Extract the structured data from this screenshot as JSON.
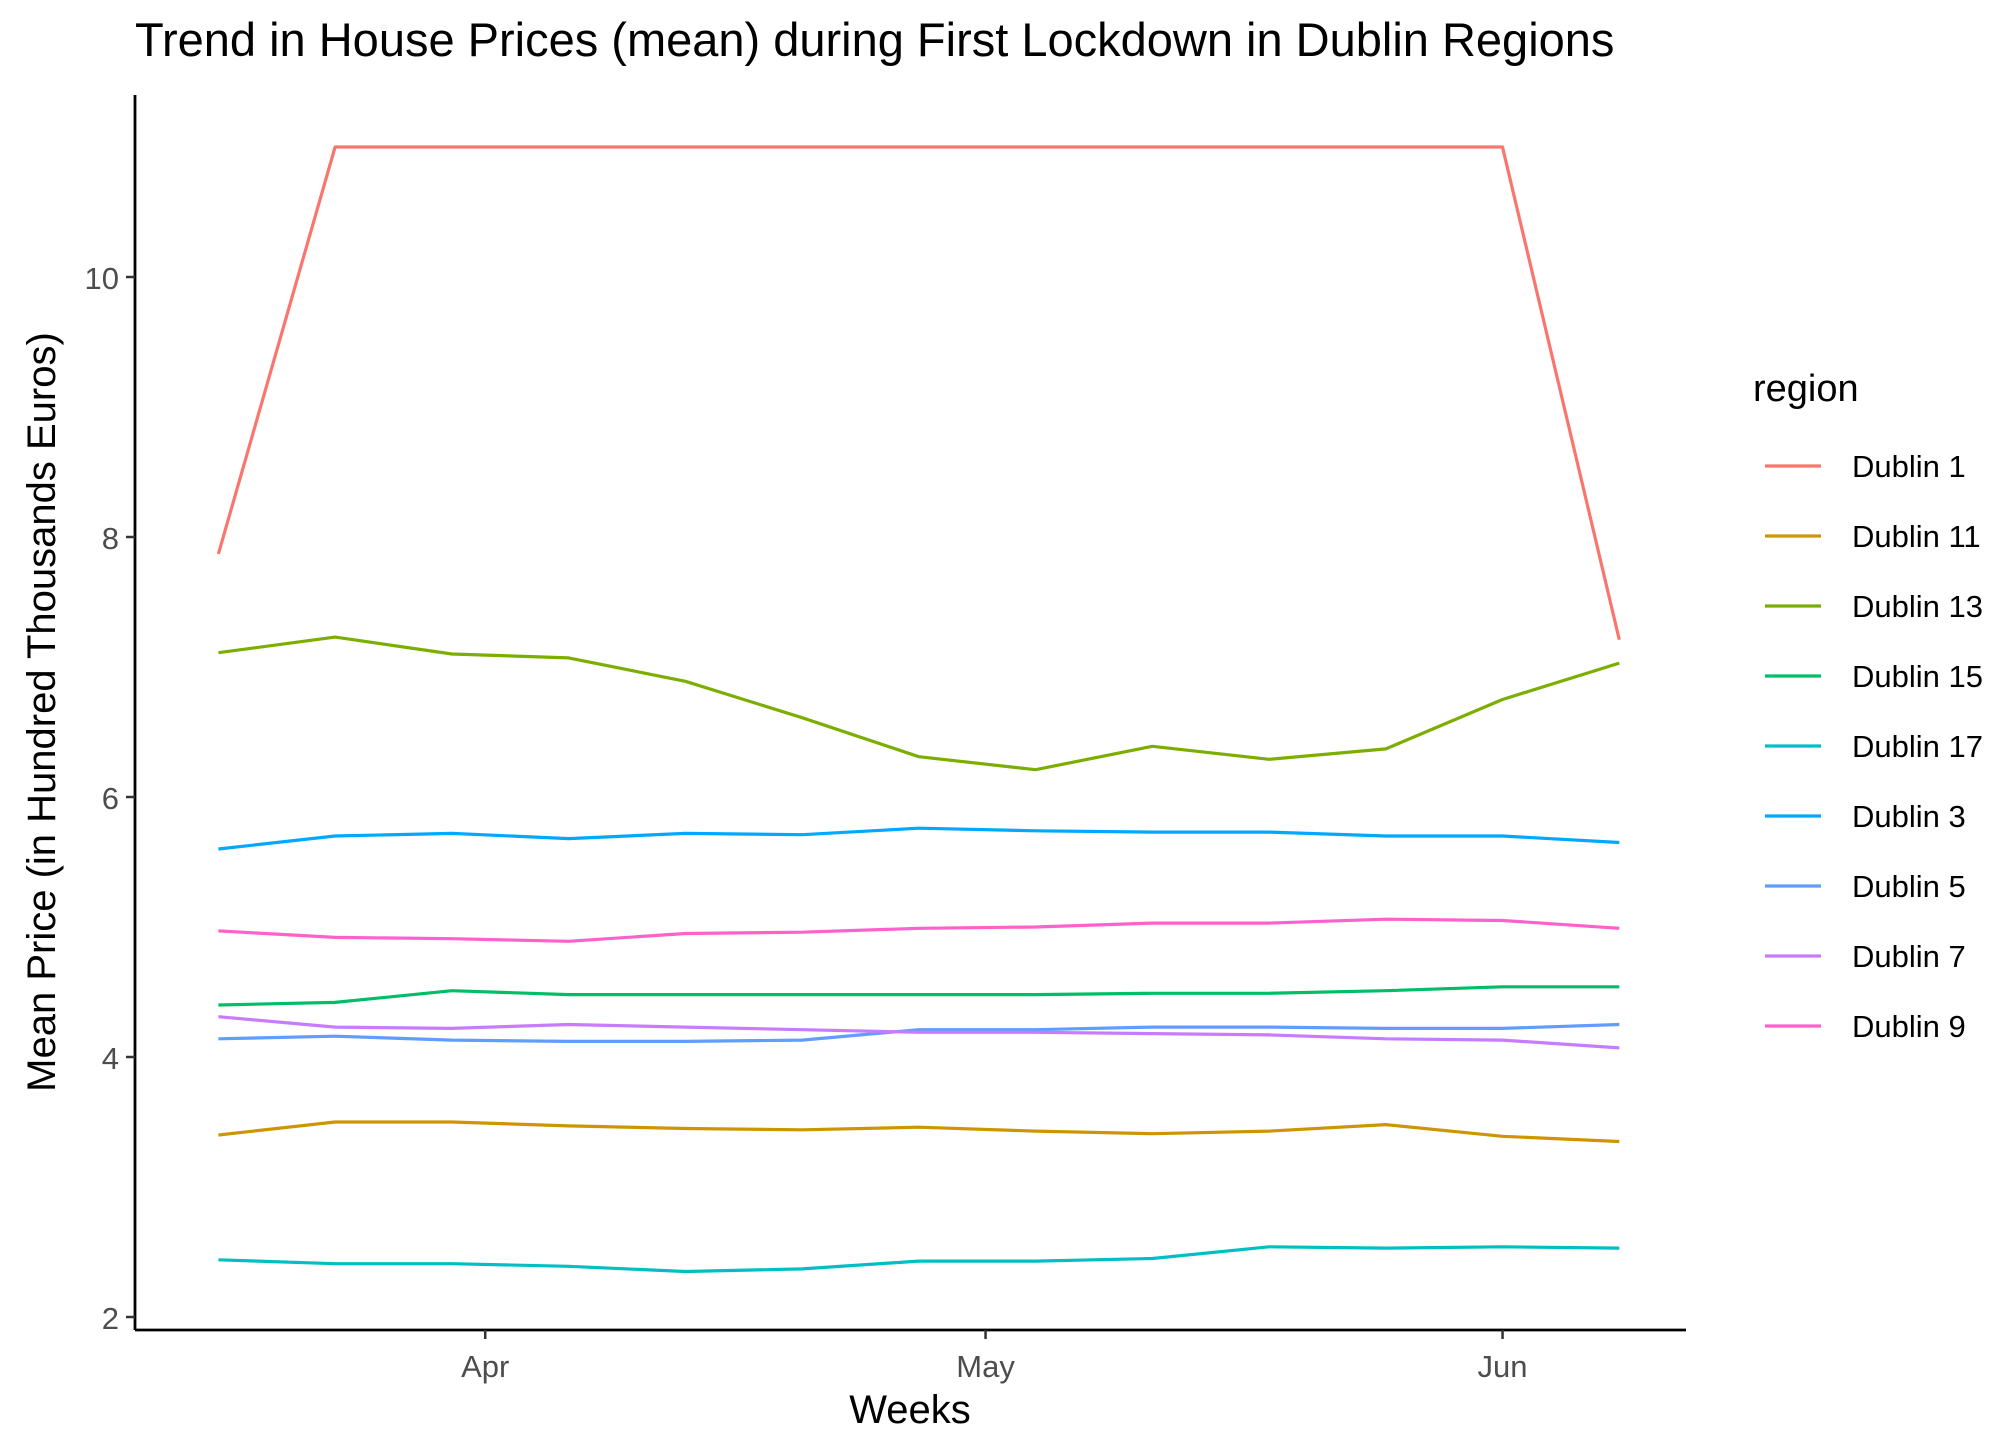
{
  "chart_data": {
    "type": "line",
    "title": "Trend in House Prices (mean) during First Lockdown in Dublin Regions",
    "xlabel": "Weeks",
    "ylabel": "Mean Price (in Hundred Thousands Euros)",
    "x_tick_labels": [
      {
        "label": "Apr",
        "date": "2020-04-01"
      },
      {
        "label": "May",
        "date": "2020-05-01"
      },
      {
        "label": "Jun",
        "date": "2020-06-01"
      }
    ],
    "x": [
      "2020-03-16",
      "2020-03-23",
      "2020-03-30",
      "2020-04-06",
      "2020-04-13",
      "2020-04-20",
      "2020-04-27",
      "2020-05-04",
      "2020-05-11",
      "2020-05-18",
      "2020-05-25",
      "2020-06-01",
      "2020-06-08"
    ],
    "xlim": [
      "2020-03-11",
      "2020-06-12"
    ],
    "y_ticks": [
      2,
      4,
      6,
      8,
      10
    ],
    "ylim": [
      1.9,
      11.4
    ],
    "grid": false,
    "legend": {
      "title": "region",
      "position": "right"
    },
    "series": [
      {
        "name": "Dublin 1",
        "color": "#F8766D",
        "values": [
          7.87,
          11.0,
          11.0,
          11.0,
          11.0,
          11.0,
          11.0,
          11.0,
          11.0,
          11.0,
          11.0,
          11.0,
          7.21
        ]
      },
      {
        "name": "Dublin 11",
        "color": "#CD9600",
        "values": [
          3.4,
          3.5,
          3.5,
          3.47,
          3.45,
          3.44,
          3.46,
          3.43,
          3.41,
          3.43,
          3.48,
          3.39,
          3.35
        ]
      },
      {
        "name": "Dublin 13",
        "color": "#7CAE00",
        "values": [
          7.11,
          7.23,
          7.1,
          7.07,
          6.89,
          6.61,
          6.31,
          6.21,
          6.39,
          6.29,
          6.37,
          6.75,
          7.03
        ]
      },
      {
        "name": "Dublin 15",
        "color": "#00BE67",
        "values": [
          4.4,
          4.42,
          4.51,
          4.48,
          4.48,
          4.48,
          4.48,
          4.48,
          4.49,
          4.49,
          4.51,
          4.54,
          4.54
        ]
      },
      {
        "name": "Dublin 17",
        "color": "#00BFC4",
        "values": [
          2.44,
          2.41,
          2.41,
          2.39,
          2.35,
          2.37,
          2.43,
          2.43,
          2.45,
          2.54,
          2.53,
          2.54,
          2.53
        ]
      },
      {
        "name": "Dublin 3",
        "color": "#00A9FF",
        "values": [
          5.6,
          5.7,
          5.72,
          5.68,
          5.72,
          5.71,
          5.76,
          5.74,
          5.73,
          5.73,
          5.7,
          5.7,
          5.65
        ]
      },
      {
        "name": "Dublin 5",
        "color": "#619CFF",
        "values": [
          4.14,
          4.16,
          4.13,
          4.12,
          4.12,
          4.13,
          4.21,
          4.21,
          4.23,
          4.23,
          4.22,
          4.22,
          4.25
        ]
      },
      {
        "name": "Dublin 7",
        "color": "#C77CFF",
        "values": [
          4.31,
          4.23,
          4.22,
          4.25,
          4.23,
          4.21,
          4.19,
          4.19,
          4.18,
          4.17,
          4.14,
          4.13,
          4.07
        ]
      },
      {
        "name": "Dublin 9",
        "color": "#FF61CC",
        "values": [
          4.97,
          4.92,
          4.91,
          4.89,
          4.95,
          4.96,
          4.99,
          5.0,
          5.03,
          5.03,
          5.06,
          5.05,
          4.99
        ]
      }
    ]
  }
}
